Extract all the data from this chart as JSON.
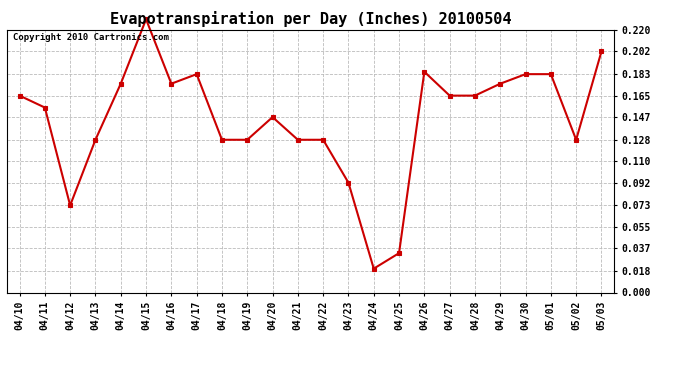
{
  "title": "Evapotranspiration per Day (Inches) 20100504",
  "copyright_text": "Copyright 2010 Cartronics.com",
  "dates": [
    "04/10",
    "04/11",
    "04/12",
    "04/13",
    "04/14",
    "04/15",
    "04/16",
    "04/17",
    "04/18",
    "04/19",
    "04/20",
    "04/21",
    "04/22",
    "04/23",
    "04/24",
    "04/25",
    "04/26",
    "04/27",
    "04/28",
    "04/29",
    "04/30",
    "05/01",
    "05/02",
    "05/03"
  ],
  "values": [
    0.165,
    0.155,
    0.073,
    0.128,
    0.175,
    0.229,
    0.175,
    0.183,
    0.128,
    0.128,
    0.147,
    0.128,
    0.128,
    0.092,
    0.02,
    0.033,
    0.185,
    0.165,
    0.165,
    0.175,
    0.183,
    0.183,
    0.128,
    0.202
  ],
  "line_color": "#cc0000",
  "marker_color": "#cc0000",
  "marker": "s",
  "marker_size": 2.5,
  "line_width": 1.5,
  "ylim": [
    0.0,
    0.22
  ],
  "yticks": [
    0.0,
    0.018,
    0.037,
    0.055,
    0.073,
    0.092,
    0.11,
    0.128,
    0.147,
    0.165,
    0.183,
    0.202,
    0.22
  ],
  "background_color": "#ffffff",
  "plot_background": "#ffffff",
  "grid_color": "#bbbbbb",
  "title_fontsize": 11,
  "tick_fontsize": 7,
  "copyright_fontsize": 6.5
}
